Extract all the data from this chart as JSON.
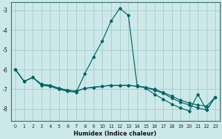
{
  "xlabel": "Humidex (Indice chaleur)",
  "xlim": [
    -0.5,
    23.5
  ],
  "ylim": [
    -8.6,
    -2.6
  ],
  "yticks": [
    -3,
    -4,
    -5,
    -6,
    -7,
    -8
  ],
  "xticks": [
    0,
    1,
    2,
    3,
    4,
    5,
    6,
    7,
    8,
    9,
    10,
    11,
    12,
    13,
    14,
    15,
    16,
    17,
    18,
    19,
    20,
    21,
    22,
    23
  ],
  "background_color": "#cce8e8",
  "grid_color": "#aacece",
  "line_color": "#006666",
  "line1": [
    -6.0,
    -6.6,
    -6.4,
    -6.8,
    -6.85,
    -7.0,
    -7.1,
    -7.15,
    -6.2,
    -5.35,
    -4.55,
    -3.55,
    -2.9,
    -3.25,
    -6.8,
    -6.95,
    -7.25,
    -7.5,
    -7.75,
    -7.95,
    -8.1,
    -7.25,
    -8.05,
    -7.4
  ],
  "line2": [
    -6.0,
    -6.6,
    -6.4,
    -6.75,
    -6.8,
    -6.95,
    -7.05,
    -7.1,
    -6.95,
    -6.9,
    -6.85,
    -6.8,
    -6.8,
    -6.8,
    -6.85,
    -6.9,
    -7.0,
    -7.15,
    -7.35,
    -7.55,
    -7.7,
    -7.8,
    -7.85,
    -7.4
  ],
  "line3": [
    -6.0,
    -6.6,
    -6.4,
    -6.75,
    -6.8,
    -6.95,
    -7.05,
    -7.1,
    -6.95,
    -6.9,
    -6.85,
    -6.8,
    -6.8,
    -6.8,
    -6.85,
    -6.9,
    -7.05,
    -7.2,
    -7.45,
    -7.65,
    -7.8,
    -7.95,
    -8.05,
    -7.4
  ]
}
